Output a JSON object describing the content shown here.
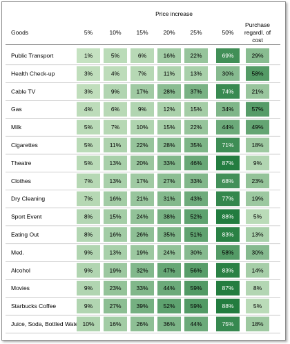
{
  "chart_data": {
    "type": "table",
    "title": "Price increase",
    "row_header": "Goods",
    "columns": [
      "5%",
      "10%",
      "15%",
      "20%",
      "25%",
      "50%",
      "Purchase regardl. of cost"
    ],
    "rows": [
      {
        "good": "Public Transport",
        "values": [
          1,
          5,
          6,
          16,
          22,
          69,
          29
        ]
      },
      {
        "good": "Health Check-up",
        "values": [
          3,
          4,
          7,
          11,
          13,
          30,
          58
        ]
      },
      {
        "good": "Cable TV",
        "values": [
          3,
          9,
          17,
          28,
          37,
          74,
          21
        ]
      },
      {
        "good": "Gas",
        "values": [
          4,
          6,
          9,
          12,
          15,
          34,
          57
        ]
      },
      {
        "good": "Milk",
        "values": [
          5,
          7,
          10,
          15,
          22,
          44,
          49
        ]
      },
      {
        "good": "Cigarettes",
        "values": [
          5,
          11,
          22,
          28,
          35,
          71,
          18
        ]
      },
      {
        "good": "Theatre",
        "values": [
          5,
          13,
          20,
          33,
          46,
          87,
          9
        ]
      },
      {
        "good": "Clothes",
        "values": [
          7,
          13,
          17,
          27,
          33,
          68,
          23
        ]
      },
      {
        "good": "Dry Cleaning",
        "values": [
          7,
          16,
          21,
          31,
          43,
          77,
          19
        ]
      },
      {
        "good": "Sport Event",
        "values": [
          8,
          15,
          24,
          38,
          52,
          88,
          5
        ]
      },
      {
        "good": "Eating Out",
        "values": [
          8,
          16,
          26,
          35,
          51,
          83,
          13
        ]
      },
      {
        "good": "Med.",
        "values": [
          9,
          13,
          19,
          24,
          30,
          58,
          30
        ]
      },
      {
        "good": "Alcohol",
        "values": [
          9,
          19,
          32,
          47,
          56,
          83,
          14
        ]
      },
      {
        "good": "Movies",
        "values": [
          9,
          23,
          33,
          44,
          59,
          87,
          8
        ]
      },
      {
        "good": "Starbucks Coffee",
        "values": [
          9,
          27,
          39,
          52,
          59,
          88,
          5
        ]
      },
      {
        "good": "Juice, Soda, Bottled Water",
        "values": [
          10,
          16,
          26,
          36,
          44,
          75,
          18
        ]
      }
    ],
    "value_suffix": "%",
    "colors": {
      "low": "#c9e4c4",
      "high": "#1f7a3c",
      "text_dark": "#000000",
      "text_light": "#ffffff",
      "row_line": "#d0d0d0"
    }
  }
}
